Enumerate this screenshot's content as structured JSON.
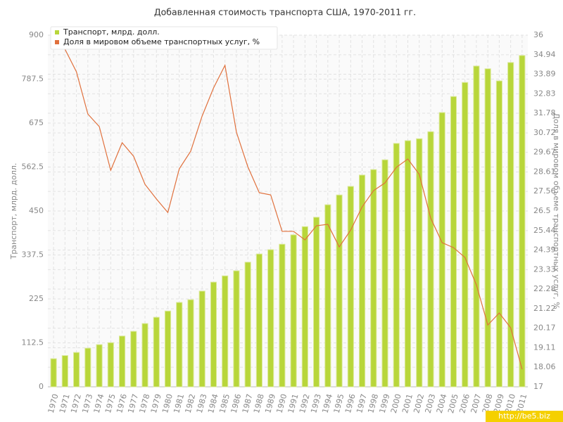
{
  "chart_data": {
    "type": "combo",
    "title": "Добавленная стоимость транспорта США, 1970-2011 гг.",
    "y_label": "Транспорт, млрд. долл.",
    "y2_label": "Доля в мировом объеме транспортных услуг, %",
    "categories": [
      "1970",
      "1971",
      "1972",
      "1973",
      "1974",
      "1975",
      "1976",
      "1977",
      "1978",
      "1979",
      "1980",
      "1981",
      "1982",
      "1983",
      "1984",
      "1985",
      "1986",
      "1987",
      "1988",
      "1989",
      "1990",
      "1991",
      "1992",
      "1993",
      "1994",
      "1995",
      "1996",
      "1997",
      "1998",
      "1999",
      "2000",
      "2001",
      "2002",
      "2003",
      "2004",
      "2005",
      "2006",
      "2007",
      "2008",
      "2009",
      "2010",
      "2011"
    ],
    "series": [
      {
        "name": "Транспорт, млрд. долл.",
        "type": "bar",
        "color": "#b8d63a",
        "values": [
          72,
          80,
          88,
          99,
          108,
          113,
          130,
          142,
          162,
          178,
          194,
          216,
          223,
          245,
          268,
          284,
          297,
          319,
          340,
          351,
          365,
          389,
          410,
          434,
          466,
          491,
          513,
          542,
          556,
          581,
          623,
          630,
          635,
          653,
          702,
          743,
          779,
          821,
          814,
          783,
          830,
          848
        ]
      },
      {
        "name": "Доля в мировом объеме транспортных услуг, %",
        "type": "line",
        "axis": "y2",
        "color": "#e0703c",
        "values": [
          35.62,
          35.24,
          34.02,
          31.74,
          31.06,
          28.7,
          30.19,
          29.46,
          27.94,
          27.15,
          26.42,
          28.78,
          29.73,
          31.63,
          33.15,
          34.37,
          30.76,
          28.89,
          27.49,
          27.37,
          25.4,
          25.4,
          24.94,
          25.7,
          25.78,
          24.56,
          25.47,
          26.72,
          27.6,
          28.02,
          28.86,
          29.31,
          28.48,
          26.12,
          24.79,
          24.52,
          23.99,
          22.51,
          20.34,
          20.99,
          20.19,
          17.95
        ]
      }
    ],
    "ylim": [
      0,
      900
    ],
    "yticks": [
      0,
      112.5,
      225,
      337.5,
      450,
      562.5,
      675,
      787.5,
      900
    ],
    "y2lim": [
      17,
      36
    ],
    "y2ticks": [
      17,
      18.06,
      19.11,
      20.17,
      21.22,
      22.28,
      23.33,
      24.39,
      25.44,
      26.5,
      27.56,
      28.61,
      29.67,
      30.72,
      31.78,
      32.83,
      33.89,
      34.94,
      36
    ],
    "grid": true,
    "legend": "top-left"
  },
  "watermark": "http://be5.biz"
}
